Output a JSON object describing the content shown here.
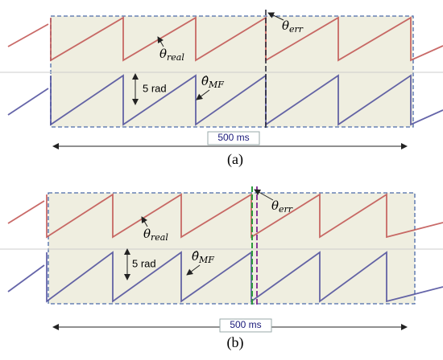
{
  "panels": [
    {
      "caption": "(a)",
      "duration": "500 ms",
      "amplitude": "5 rad",
      "theta_err": {
        "base": "θ",
        "sub": "err"
      },
      "theta_real": {
        "base": "θ",
        "sub": "real"
      },
      "theta_mf": {
        "base": "θ̂",
        "sub": "MF"
      }
    },
    {
      "caption": "(b)",
      "duration": "500 ms",
      "amplitude": "5 rad",
      "theta_err": {
        "base": "θ",
        "sub": "err"
      },
      "theta_real": {
        "base": "θ",
        "sub": "real"
      },
      "theta_mf": {
        "base": "θ̂",
        "sub": "MF"
      }
    }
  ]
}
